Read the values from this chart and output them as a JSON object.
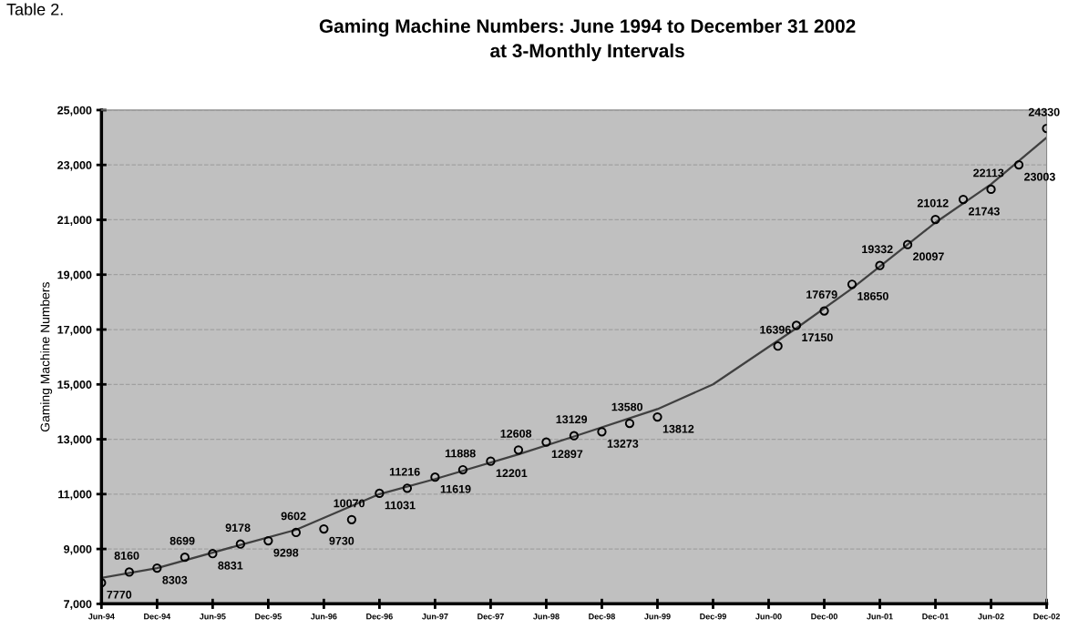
{
  "chart_data": {
    "type": "scatter",
    "title": "Gaming Machine Numbers: June 1994 to December 31 2002\nat 3-Monthly Intervals",
    "ylabel": "Gaming Machine Numbers",
    "annotations": [
      "Table 2."
    ],
    "xlim": [
      "1994-06",
      "2002-12"
    ],
    "xticks": [
      {
        "value": "1994-06",
        "label": "Jun-94"
      },
      {
        "value": "1994-12",
        "label": "Dec-94"
      },
      {
        "value": "1995-06",
        "label": "Jun-95"
      },
      {
        "value": "1995-12",
        "label": "Dec-95"
      },
      {
        "value": "1996-06",
        "label": "Jun-96"
      },
      {
        "value": "1996-12",
        "label": "Dec-96"
      },
      {
        "value": "1997-06",
        "label": "Jun-97"
      },
      {
        "value": "1997-12",
        "label": "Dec-97"
      },
      {
        "value": "1998-06",
        "label": "Jun-98"
      },
      {
        "value": "1998-12",
        "label": "Dec-98"
      },
      {
        "value": "1999-06",
        "label": "Jun-99"
      },
      {
        "value": "1999-12",
        "label": "Dec-99"
      },
      {
        "value": "2000-06",
        "label": "Jun-00"
      },
      {
        "value": "2000-12",
        "label": "Dec-00"
      },
      {
        "value": "2001-06",
        "label": "Jun-01"
      },
      {
        "value": "2001-12",
        "label": "Dec-01"
      },
      {
        "value": "2002-06",
        "label": "Jun-02"
      },
      {
        "value": "2002-12",
        "label": "Dec-02"
      }
    ],
    "ylim": [
      7000,
      25000
    ],
    "yticks": [
      {
        "value": 7000,
        "label": "7,000"
      },
      {
        "value": 9000,
        "label": "9,000"
      },
      {
        "value": 11000,
        "label": "11,000"
      },
      {
        "value": 13000,
        "label": "13,000"
      },
      {
        "value": 15000,
        "label": "15,000"
      },
      {
        "value": 17000,
        "label": "17,000"
      },
      {
        "value": 19000,
        "label": "19,000"
      },
      {
        "value": 21000,
        "label": "21,000"
      },
      {
        "value": 23000,
        "label": "23,000"
      },
      {
        "value": 25000,
        "label": "25,000"
      }
    ],
    "grid": "y",
    "marker": "circle",
    "series": [
      {
        "color": "#000000",
        "data_labels": true,
        "x": [
          "1994-06",
          "1994-09",
          "1994-12",
          "1995-03",
          "1995-06",
          "1995-09",
          "1995-12",
          "1996-03",
          "1996-06",
          "1996-09",
          "1996-12",
          "1997-03",
          "1997-06",
          "1997-09",
          "1997-12",
          "1998-03",
          "1998-06",
          "1998-09",
          "1998-12",
          "1999-03",
          "1999-06",
          "2000-07",
          "2000-09",
          "2000-12",
          "2001-03",
          "2001-06",
          "2001-09",
          "2001-12",
          "2002-03",
          "2002-06",
          "2002-09",
          "2002-12"
        ],
        "values": [
          7770,
          8160,
          8303,
          8699,
          8831,
          9178,
          9298,
          9602,
          9730,
          10070,
          11031,
          11216,
          11619,
          11888,
          12201,
          12608,
          12897,
          13129,
          13273,
          13580,
          13812,
          16396,
          17150,
          17679,
          18650,
          19332,
          20097,
          21012,
          21743,
          22113,
          23003,
          24330
        ]
      },
      {
        "type": "line",
        "color": "#404040",
        "marker": "none",
        "line_style": "solid",
        "x": [
          "1994-06",
          "1994-12",
          "1995-09",
          "1996-03",
          "1996-12",
          "1997-06",
          "1998-03",
          "1998-09",
          "1999-06",
          "1999-12",
          "2000-09",
          "2001-03",
          "2001-12",
          "2002-06",
          "2002-12"
        ],
        "values": [
          7950,
          8300,
          9150,
          9700,
          11000,
          11550,
          12450,
          13100,
          14100,
          15000,
          17050,
          18500,
          20900,
          22300,
          24000
        ]
      }
    ]
  }
}
